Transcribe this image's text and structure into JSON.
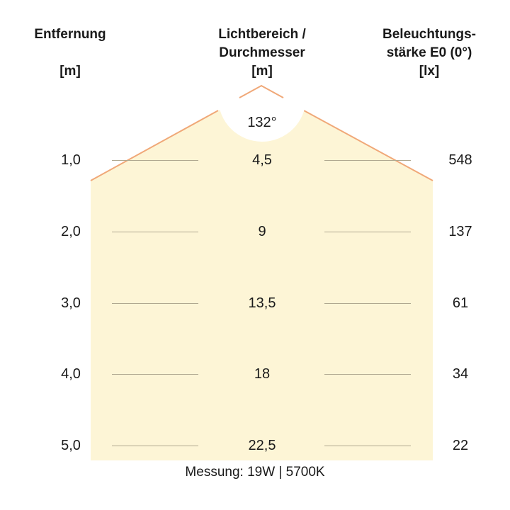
{
  "headers": {
    "distance": {
      "title": "Entfernung",
      "unit": "[m]"
    },
    "diameter": {
      "title_line1": "Lichtbereich /",
      "title_line2": "Durchmesser",
      "unit": "[m]"
    },
    "illuminance": {
      "title_line1": "Beleuchtungs-",
      "title_line2": "stärke E0 (0°)",
      "unit": "[lx]"
    }
  },
  "beam_angle": "132°",
  "rows": [
    {
      "distance": "1,0",
      "diameter": "4,5",
      "lux": "548"
    },
    {
      "distance": "2,0",
      "diameter": "9",
      "lux": "137"
    },
    {
      "distance": "3,0",
      "diameter": "13,5",
      "lux": "61"
    },
    {
      "distance": "4,0",
      "diameter": "18",
      "lux": "34"
    },
    {
      "distance": "5,0",
      "diameter": "22,5",
      "lux": "22"
    }
  ],
  "footer": "Messung: 19W | 5700K",
  "colors": {
    "beam_fill": "#fdf5d6",
    "beam_edge": "#f0a878",
    "lines": "#b0a890"
  }
}
